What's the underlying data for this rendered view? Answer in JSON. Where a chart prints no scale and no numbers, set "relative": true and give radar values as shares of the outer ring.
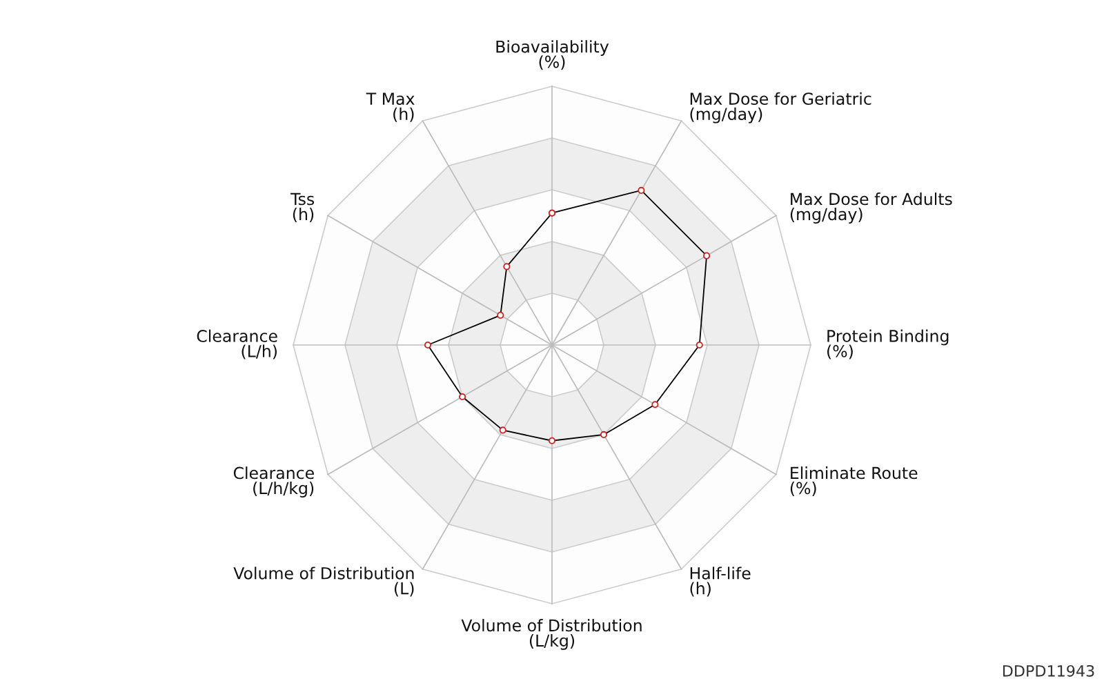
{
  "chart_data": {
    "type": "radar",
    "relative": true,
    "grid": true,
    "marker": "circle",
    "categories": [
      "Bioavailability\n(%)",
      "Max Dose for Geriatric\n(mg/day)",
      "Max Dose for Adults\n(mg/day)",
      "Protein Binding\n(%)",
      "Eliminate Route\n(%)",
      "Half-life\n(h)",
      "Volume of Distribution\n(L/kg)",
      "Volume of Distribution\n(L)",
      "Clearance\n(L/h/kg)",
      "Clearance\n(L/h)",
      "Tss\n(h)",
      "T Max\n(h)"
    ],
    "series": [
      {
        "color": "#000000",
        "values": [
          0.51,
          0.69,
          0.69,
          0.57,
          0.46,
          0.4,
          0.37,
          0.38,
          0.4,
          0.48,
          0.23,
          0.35
        ]
      }
    ],
    "annotations": [
      "DDPD11943"
    ]
  }
}
